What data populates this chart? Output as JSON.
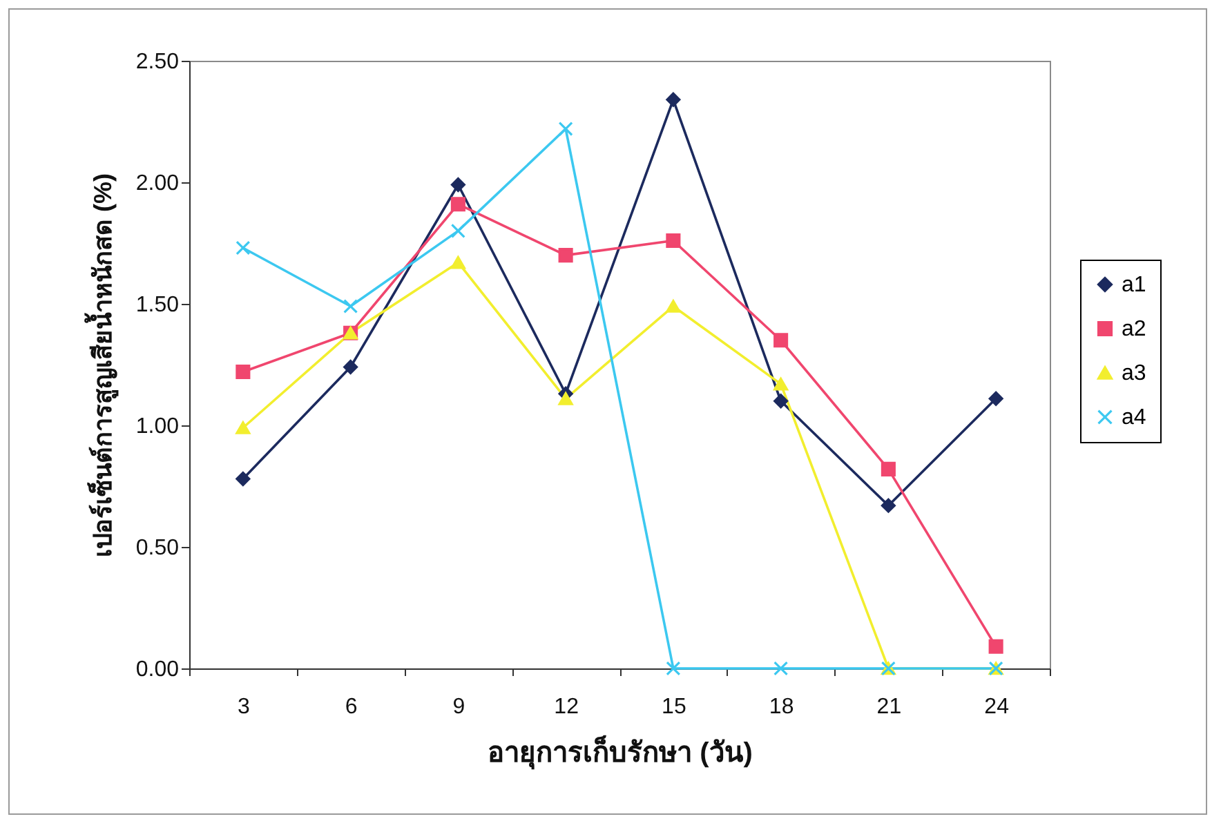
{
  "chart_data": {
    "type": "line",
    "xlabel": "อายุการเก็บรักษา (วัน)",
    "ylabel": "เปอร์เซ็นต์การสูญเสียน้ำหนักสด (%)",
    "categories": [
      "3",
      "6",
      "9",
      "12",
      "15",
      "18",
      "21",
      "24"
    ],
    "ylim": [
      0,
      2.5
    ],
    "yticks": [
      {
        "value": 0,
        "label": "0.00"
      },
      {
        "value": 0.5,
        "label": "0.50"
      },
      {
        "value": 1,
        "label": "1.00"
      },
      {
        "value": 1.5,
        "label": "1.50"
      },
      {
        "value": 2,
        "label": "2.00"
      },
      {
        "value": 2.5,
        "label": "2.50"
      }
    ],
    "legend": "right",
    "series": [
      {
        "name": "a1",
        "color": "#1c2a5e",
        "marker": "diamond",
        "values": [
          0.78,
          1.24,
          1.99,
          1.13,
          2.34,
          1.1,
          0.67,
          1.11
        ]
      },
      {
        "name": "a2",
        "color": "#f0466e",
        "marker": "square",
        "values": [
          1.22,
          1.38,
          1.91,
          1.7,
          1.76,
          1.35,
          0.82,
          0.09
        ]
      },
      {
        "name": "a3",
        "color": "#f2ee2e",
        "marker": "triangle",
        "values": [
          0.99,
          1.38,
          1.67,
          1.11,
          1.49,
          1.17,
          0,
          0
        ]
      },
      {
        "name": "a4",
        "color": "#3cc8f0",
        "marker": "cross",
        "values": [
          1.73,
          1.49,
          1.8,
          2.22,
          0,
          0,
          0,
          0
        ]
      }
    ]
  }
}
